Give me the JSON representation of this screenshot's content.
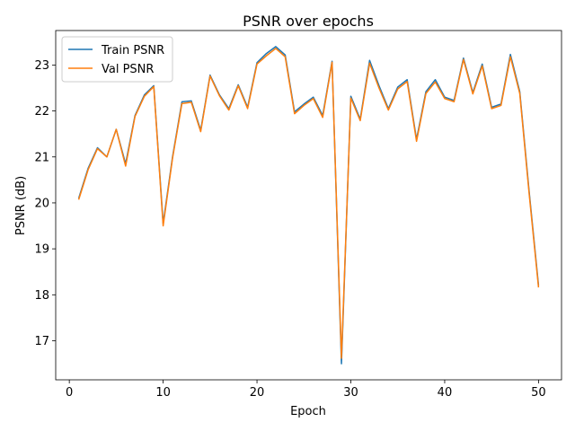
{
  "chart_data": {
    "type": "line",
    "title": "PSNR over epochs",
    "xlabel": "Epoch",
    "ylabel": "PSNR (dB)",
    "xlim": [
      -1.45,
      52.45
    ],
    "ylim": [
      16.15,
      23.75
    ],
    "xticks": [
      0,
      10,
      20,
      30,
      40,
      50
    ],
    "yticks": [
      17,
      18,
      19,
      20,
      21,
      22,
      23
    ],
    "grid": false,
    "legend_position": "top-left",
    "x": [
      1,
      2,
      3,
      4,
      5,
      6,
      7,
      8,
      9,
      10,
      11,
      12,
      13,
      14,
      15,
      16,
      17,
      18,
      19,
      20,
      21,
      22,
      23,
      24,
      25,
      26,
      27,
      28,
      29,
      30,
      31,
      32,
      33,
      34,
      35,
      36,
      37,
      38,
      39,
      40,
      41,
      42,
      43,
      44,
      45,
      46,
      47,
      48,
      49,
      50
    ],
    "series": [
      {
        "name": "Train PSNR",
        "color": "#1f77b4",
        "values": [
          20.1,
          20.75,
          21.2,
          21.0,
          21.6,
          20.85,
          21.9,
          22.35,
          22.55,
          19.55,
          21.0,
          22.2,
          22.22,
          21.58,
          22.78,
          22.35,
          22.05,
          22.57,
          22.08,
          23.05,
          23.25,
          23.4,
          23.22,
          21.98,
          22.15,
          22.3,
          21.9,
          23.08,
          16.5,
          22.32,
          21.82,
          23.1,
          22.55,
          22.05,
          22.52,
          22.68,
          21.38,
          22.42,
          22.68,
          22.3,
          22.23,
          23.15,
          22.4,
          23.02,
          22.08,
          22.15,
          23.23,
          22.42,
          20.25,
          18.2
        ]
      },
      {
        "name": "Val PSNR",
        "color": "#ff7f0e",
        "values": [
          20.07,
          20.72,
          21.18,
          21.0,
          21.6,
          20.8,
          21.88,
          22.32,
          22.53,
          19.5,
          20.97,
          22.16,
          22.19,
          21.55,
          22.76,
          22.33,
          22.02,
          22.55,
          22.05,
          23.02,
          23.2,
          23.36,
          23.18,
          21.94,
          22.12,
          22.27,
          21.86,
          23.06,
          16.62,
          22.28,
          21.79,
          23.04,
          22.5,
          22.02,
          22.48,
          22.64,
          21.34,
          22.38,
          22.63,
          22.27,
          22.2,
          23.12,
          22.37,
          22.98,
          22.05,
          22.12,
          23.18,
          22.38,
          20.2,
          18.16
        ]
      }
    ]
  }
}
